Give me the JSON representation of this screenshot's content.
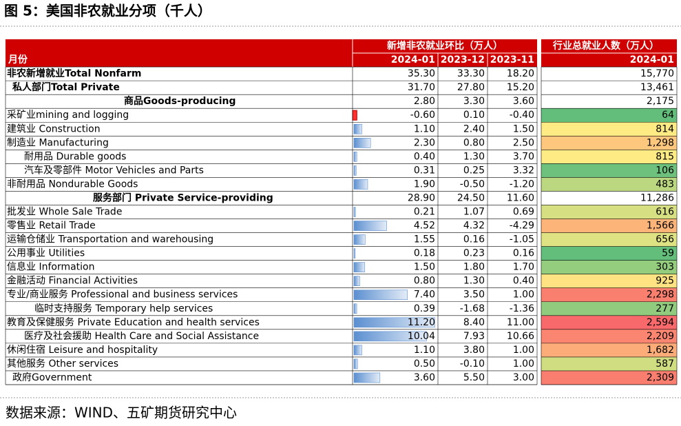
{
  "title": "图 5：美国非农就业分项（千人）",
  "table": {
    "group_headers": [
      "新增非农就业环比（万人）",
      "行业总就业人数（万人）"
    ],
    "row_header": "月份",
    "columns": [
      "2024-01",
      "2023-12",
      "2023-11",
      "2024-01"
    ],
    "rows": [
      [
        "非农新增就业Total Nonfarm",
        "35.30",
        "33.30",
        "18.20",
        "15,770"
      ],
      [
        "私人部门Total Private",
        "31.70",
        "27.80",
        "15.20",
        "13,461"
      ],
      [
        "商品Goods-producing",
        "2.80",
        "3.30",
        "3.60",
        "2,175"
      ],
      [
        "采矿业mining and logging",
        "-0.60",
        "0.10",
        "-0.40",
        "64"
      ],
      [
        "建筑业 Construction",
        "1.10",
        "2.40",
        "1.50",
        "814"
      ],
      [
        "制造业 Manufacturing",
        "2.30",
        "0.80",
        "2.50",
        "1,298"
      ],
      [
        "耐用品  Durable goods",
        "0.40",
        "1.30",
        "3.70",
        "815"
      ],
      [
        "汽车及零部件 Motor Vehicles and Parts",
        "0.31",
        "0.25",
        "3.32",
        "106"
      ],
      [
        "非耐用品 Nondurable Goods",
        "1.90",
        "-0.50",
        "-1.20",
        "483"
      ],
      [
        "服务部门 Private Service-providing",
        "28.90",
        "24.50",
        "11.60",
        "11,286"
      ],
      [
        "批发业 Whole Sale Trade",
        "0.21",
        "1.07",
        "0.69",
        "616"
      ],
      [
        "零售业 Retail Trade",
        "4.52",
        "4.32",
        "-4.29",
        "1,566"
      ],
      [
        "运输仓储业 Transportation and warehousing",
        "1.55",
        "0.16",
        "-1.05",
        "656"
      ],
      [
        "公用事业 Utilities",
        "0.18",
        "0.23",
        "0.16",
        "59"
      ],
      [
        "信息业 Information",
        "1.50",
        "1.80",
        "1.70",
        "303"
      ],
      [
        "金融活动 Financial Activities",
        "0.80",
        "1.30",
        "0.40",
        "925"
      ],
      [
        "专业/商业服务 Professional and business services",
        "7.40",
        "3.50",
        "1.00",
        "2,298"
      ],
      [
        "临时支持服务 Temporary help services",
        "0.39",
        "-1.68",
        "-1.36",
        "277"
      ],
      [
        "教育及保健服务 Private Education and health services",
        "11.20",
        "8.40",
        "11.00",
        "2,594"
      ],
      [
        "医疗及社会援助 Health Care and Social Assistance",
        "10.04",
        "7.93",
        "10.66",
        "2,209"
      ],
      [
        "休闲住宿 Leisure and hospitality",
        "1.10",
        "3.80",
        "1.00",
        "1,682"
      ],
      [
        "其他服务 Other services",
        "0.50",
        "-0.10",
        "1.00",
        "587"
      ],
      [
        "政府Government",
        "3.60",
        "5.50",
        "3.00",
        "2,309"
      ]
    ]
  },
  "source": "数据来源：WIND、五矿期货研究中心"
}
